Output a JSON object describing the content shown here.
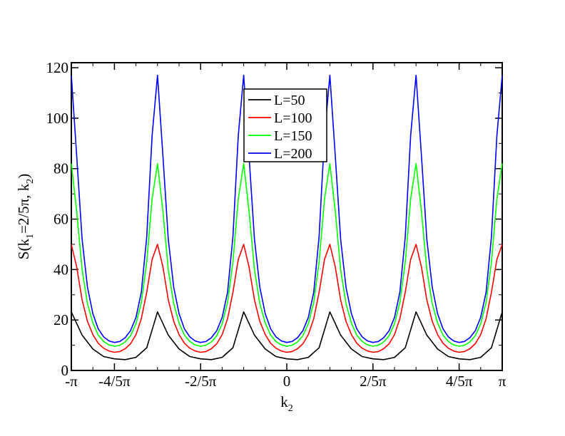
{
  "chart_data": {
    "type": "line",
    "xlabel": {
      "base": "k",
      "sub": "2"
    },
    "ylabel": {
      "parts": [
        {
          "t": "S(k",
          "sub": false
        },
        {
          "t": "1",
          "sub": true
        },
        {
          "t": "=2/5π, k",
          "sub": false
        },
        {
          "t": "2",
          "sub": true
        },
        {
          "t": ")",
          "sub": false
        }
      ]
    },
    "xlim": [
      -3.14159,
      3.14159
    ],
    "ylim": [
      0,
      122
    ],
    "xticks": [
      {
        "v": -3.14159,
        "label": "-π"
      },
      {
        "v": -2.51327,
        "label": "-4/5π"
      },
      {
        "v": -1.25664,
        "label": "-2/5π"
      },
      {
        "v": 0,
        "label": "0"
      },
      {
        "v": 1.25664,
        "label": "2/5π"
      },
      {
        "v": 2.51327,
        "label": "4/5π"
      },
      {
        "v": 3.14159,
        "label": "π"
      }
    ],
    "yticks": [
      {
        "v": 0,
        "label": "0"
      },
      {
        "v": 20,
        "label": "20"
      },
      {
        "v": 40,
        "label": "40"
      },
      {
        "v": 60,
        "label": "60"
      },
      {
        "v": 80,
        "label": "80"
      },
      {
        "v": 100,
        "label": "100"
      },
      {
        "v": 120,
        "label": "120"
      }
    ],
    "legend_position": "top-center",
    "series": [
      {
        "name": "L=50",
        "color": "#000000",
        "points": [
          [
            -3.1416,
            23.2
          ],
          [
            -2.9845,
            14
          ],
          [
            -2.8274,
            8.5
          ],
          [
            -2.6704,
            5.5
          ],
          [
            -2.5133,
            4.6
          ],
          [
            -2.3562,
            4.3
          ],
          [
            -2.1991,
            5.2
          ],
          [
            -2.042,
            9
          ],
          [
            -1.885,
            23.2
          ],
          [
            -1.7279,
            14
          ],
          [
            -1.5708,
            8.5
          ],
          [
            -1.4137,
            5.5
          ],
          [
            -1.2566,
            4.6
          ],
          [
            -1.0996,
            4.3
          ],
          [
            -0.9425,
            5.2
          ],
          [
            -0.7854,
            9
          ],
          [
            -0.6283,
            23.2
          ],
          [
            -0.4712,
            14
          ],
          [
            -0.3142,
            8.5
          ],
          [
            -0.1571,
            5.5
          ],
          [
            0,
            4.6
          ],
          [
            0.1571,
            4.3
          ],
          [
            0.3142,
            5.2
          ],
          [
            0.4712,
            9
          ],
          [
            0.6283,
            23.2
          ],
          [
            0.7854,
            14
          ],
          [
            0.9425,
            8.5
          ],
          [
            1.0996,
            5.5
          ],
          [
            1.2566,
            4.6
          ],
          [
            1.4137,
            4.3
          ],
          [
            1.5708,
            5.2
          ],
          [
            1.7279,
            9
          ],
          [
            1.885,
            23.2
          ],
          [
            2.042,
            14
          ],
          [
            2.1991,
            8.5
          ],
          [
            2.3562,
            5.5
          ],
          [
            2.5133,
            4.6
          ],
          [
            2.6704,
            4.3
          ],
          [
            2.8274,
            5.2
          ],
          [
            2.9845,
            9
          ],
          [
            3.1416,
            23.2
          ]
        ]
      },
      {
        "name": "L=100",
        "color": "#ff0000",
        "points": [
          [
            -3.1416,
            50
          ],
          [
            -3.0631,
            41
          ],
          [
            -2.9845,
            28
          ],
          [
            -2.906,
            19.5
          ],
          [
            -2.8274,
            14.2
          ],
          [
            -2.7489,
            10.8
          ],
          [
            -2.6704,
            8.8
          ],
          [
            -2.5918,
            7.7
          ],
          [
            -2.5133,
            7.2
          ],
          [
            -2.4347,
            7.5
          ],
          [
            -2.3562,
            8.6
          ],
          [
            -2.2777,
            10.6
          ],
          [
            -2.1991,
            14.2
          ],
          [
            -2.1206,
            20.5
          ],
          [
            -2.042,
            31
          ],
          [
            -1.9635,
            44
          ],
          [
            -1.885,
            50
          ],
          [
            -1.8064,
            41
          ],
          [
            -1.7279,
            28
          ],
          [
            -1.6493,
            19.5
          ],
          [
            -1.5708,
            14.2
          ],
          [
            -1.4923,
            10.8
          ],
          [
            -1.4137,
            8.8
          ],
          [
            -1.3352,
            7.7
          ],
          [
            -1.2566,
            7.2
          ],
          [
            -1.1781,
            7.5
          ],
          [
            -1.0996,
            8.6
          ],
          [
            -1.021,
            10.6
          ],
          [
            -0.9425,
            14.2
          ],
          [
            -0.8639,
            20.5
          ],
          [
            -0.7854,
            31
          ],
          [
            -0.7069,
            44
          ],
          [
            -0.6283,
            50
          ],
          [
            -0.5498,
            41
          ],
          [
            -0.4712,
            28
          ],
          [
            -0.3927,
            19.5
          ],
          [
            -0.3142,
            14.2
          ],
          [
            -0.2356,
            10.8
          ],
          [
            -0.1571,
            8.8
          ],
          [
            -0.0785,
            7.7
          ],
          [
            0,
            7.2
          ],
          [
            0.0785,
            7.5
          ],
          [
            0.1571,
            8.6
          ],
          [
            0.2356,
            10.6
          ],
          [
            0.3142,
            14.2
          ],
          [
            0.3927,
            20.5
          ],
          [
            0.4712,
            31
          ],
          [
            0.5498,
            44
          ],
          [
            0.6283,
            50
          ],
          [
            0.7069,
            41
          ],
          [
            0.7854,
            28
          ],
          [
            0.8639,
            19.5
          ],
          [
            0.9425,
            14.2
          ],
          [
            1.021,
            10.8
          ],
          [
            1.0996,
            8.8
          ],
          [
            1.1781,
            7.7
          ],
          [
            1.2566,
            7.2
          ],
          [
            1.3352,
            7.5
          ],
          [
            1.4137,
            8.6
          ],
          [
            1.4923,
            10.6
          ],
          [
            1.5708,
            14.2
          ],
          [
            1.6493,
            20.5
          ],
          [
            1.7279,
            31
          ],
          [
            1.8064,
            44
          ],
          [
            1.885,
            50
          ],
          [
            1.9635,
            41
          ],
          [
            2.042,
            28
          ],
          [
            2.1206,
            19.5
          ],
          [
            2.1991,
            14.2
          ],
          [
            2.2777,
            10.8
          ],
          [
            2.3562,
            8.8
          ],
          [
            2.4347,
            7.7
          ],
          [
            2.5133,
            7.2
          ],
          [
            2.5918,
            7.5
          ],
          [
            2.6704,
            8.6
          ],
          [
            2.7489,
            10.6
          ],
          [
            2.8274,
            14.2
          ],
          [
            2.906,
            20.5
          ],
          [
            2.9845,
            31
          ],
          [
            3.0631,
            44
          ],
          [
            3.1416,
            50
          ]
        ]
      },
      {
        "name": "L=150",
        "color": "#00ff00",
        "points": [
          [
            -3.1416,
            82
          ],
          [
            -3.0631,
            63
          ],
          [
            -2.9845,
            40
          ],
          [
            -2.906,
            26.5
          ],
          [
            -2.8274,
            18.8
          ],
          [
            -2.7489,
            14
          ],
          [
            -2.6704,
            11.5
          ],
          [
            -2.5918,
            10.1
          ],
          [
            -2.5133,
            9.6
          ],
          [
            -2.4347,
            10
          ],
          [
            -2.3562,
            11.3
          ],
          [
            -2.2777,
            13.8
          ],
          [
            -2.1991,
            18.5
          ],
          [
            -2.1206,
            27
          ],
          [
            -2.042,
            43
          ],
          [
            -1.9635,
            68
          ],
          [
            -1.885,
            82
          ],
          [
            -1.8064,
            63
          ],
          [
            -1.7279,
            40
          ],
          [
            -1.6493,
            26.5
          ],
          [
            -1.5708,
            18.8
          ],
          [
            -1.4923,
            14
          ],
          [
            -1.4137,
            11.5
          ],
          [
            -1.3352,
            10.1
          ],
          [
            -1.2566,
            9.6
          ],
          [
            -1.1781,
            10
          ],
          [
            -1.0996,
            11.3
          ],
          [
            -1.021,
            13.8
          ],
          [
            -0.9425,
            18.5
          ],
          [
            -0.8639,
            27
          ],
          [
            -0.7854,
            43
          ],
          [
            -0.7069,
            68
          ],
          [
            -0.6283,
            82
          ],
          [
            -0.5498,
            63
          ],
          [
            -0.4712,
            40
          ],
          [
            -0.3927,
            26.5
          ],
          [
            -0.3142,
            18.8
          ],
          [
            -0.2356,
            14
          ],
          [
            -0.1571,
            11.5
          ],
          [
            -0.0785,
            10.1
          ],
          [
            0,
            9.6
          ],
          [
            0.0785,
            10
          ],
          [
            0.1571,
            11.3
          ],
          [
            0.2356,
            13.8
          ],
          [
            0.3142,
            18.5
          ],
          [
            0.3927,
            27
          ],
          [
            0.4712,
            43
          ],
          [
            0.5498,
            68
          ],
          [
            0.6283,
            82
          ],
          [
            0.7069,
            63
          ],
          [
            0.7854,
            40
          ],
          [
            0.8639,
            26.5
          ],
          [
            0.9425,
            18.8
          ],
          [
            1.021,
            14
          ],
          [
            1.0996,
            11.5
          ],
          [
            1.1781,
            10.1
          ],
          [
            1.2566,
            9.6
          ],
          [
            1.3352,
            10
          ],
          [
            1.4137,
            11.3
          ],
          [
            1.4923,
            13.8
          ],
          [
            1.5708,
            18.5
          ],
          [
            1.6493,
            27
          ],
          [
            1.7279,
            43
          ],
          [
            1.8064,
            68
          ],
          [
            1.885,
            82
          ],
          [
            1.9635,
            63
          ],
          [
            2.042,
            40
          ],
          [
            2.1206,
            26.5
          ],
          [
            2.1991,
            18.8
          ],
          [
            2.2777,
            14
          ],
          [
            2.3562,
            11.5
          ],
          [
            2.4347,
            10.1
          ],
          [
            2.5133,
            9.6
          ],
          [
            2.5918,
            10
          ],
          [
            2.6704,
            11.3
          ],
          [
            2.7489,
            13.8
          ],
          [
            2.8274,
            18.5
          ],
          [
            2.906,
            27
          ],
          [
            2.9845,
            43
          ],
          [
            3.0631,
            68
          ],
          [
            3.1416,
            82
          ]
        ]
      },
      {
        "name": "L=200",
        "color": "#0000ff",
        "points": [
          [
            -3.1416,
            117
          ],
          [
            -3.0631,
            85
          ],
          [
            -2.9845,
            52
          ],
          [
            -2.906,
            33
          ],
          [
            -2.8274,
            22.5
          ],
          [
            -2.7489,
            16.5
          ],
          [
            -2.6704,
            13.3
          ],
          [
            -2.5918,
            11.7
          ],
          [
            -2.5133,
            11.1
          ],
          [
            -2.4347,
            11.5
          ],
          [
            -2.3562,
            13
          ],
          [
            -2.2777,
            15.8
          ],
          [
            -2.1991,
            21
          ],
          [
            -2.1206,
            31
          ],
          [
            -2.042,
            53
          ],
          [
            -1.9635,
            93
          ],
          [
            -1.885,
            117
          ],
          [
            -1.8064,
            85
          ],
          [
            -1.7279,
            52
          ],
          [
            -1.6493,
            33
          ],
          [
            -1.5708,
            22.5
          ],
          [
            -1.4923,
            16.5
          ],
          [
            -1.4137,
            13.3
          ],
          [
            -1.3352,
            11.7
          ],
          [
            -1.2566,
            11.1
          ],
          [
            -1.1781,
            11.5
          ],
          [
            -1.0996,
            13
          ],
          [
            -1.021,
            15.8
          ],
          [
            -0.9425,
            21
          ],
          [
            -0.8639,
            31
          ],
          [
            -0.7854,
            53
          ],
          [
            -0.7069,
            93
          ],
          [
            -0.6283,
            117
          ],
          [
            -0.5498,
            85
          ],
          [
            -0.4712,
            52
          ],
          [
            -0.3927,
            33
          ],
          [
            -0.3142,
            22.5
          ],
          [
            -0.2356,
            16.5
          ],
          [
            -0.1571,
            13.3
          ],
          [
            -0.0785,
            11.7
          ],
          [
            0,
            11.1
          ],
          [
            0.0785,
            11.5
          ],
          [
            0.1571,
            13
          ],
          [
            0.2356,
            15.8
          ],
          [
            0.3142,
            21
          ],
          [
            0.3927,
            31
          ],
          [
            0.4712,
            53
          ],
          [
            0.5498,
            93
          ],
          [
            0.6283,
            117
          ],
          [
            0.7069,
            85
          ],
          [
            0.7854,
            52
          ],
          [
            0.8639,
            33
          ],
          [
            0.9425,
            22.5
          ],
          [
            1.021,
            16.5
          ],
          [
            1.0996,
            13.3
          ],
          [
            1.1781,
            11.7
          ],
          [
            1.2566,
            11.1
          ],
          [
            1.3352,
            11.5
          ],
          [
            1.4137,
            13
          ],
          [
            1.4923,
            15.8
          ],
          [
            1.5708,
            21
          ],
          [
            1.6493,
            31
          ],
          [
            1.7279,
            53
          ],
          [
            1.8064,
            93
          ],
          [
            1.885,
            117
          ],
          [
            1.9635,
            85
          ],
          [
            2.042,
            52
          ],
          [
            2.1206,
            33
          ],
          [
            2.1991,
            22.5
          ],
          [
            2.2777,
            16.5
          ],
          [
            2.3562,
            13.3
          ],
          [
            2.4347,
            11.7
          ],
          [
            2.5133,
            11.1
          ],
          [
            2.5918,
            11.5
          ],
          [
            2.6704,
            13
          ],
          [
            2.7489,
            15.8
          ],
          [
            2.8274,
            21
          ],
          [
            2.906,
            31
          ],
          [
            2.9845,
            53
          ],
          [
            3.0631,
            93
          ],
          [
            3.1416,
            117
          ]
        ]
      }
    ]
  }
}
